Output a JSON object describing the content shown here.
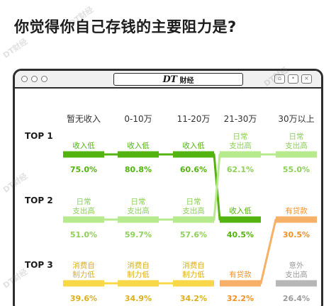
{
  "title": "你觉得你自己存钱的主要阻力是?",
  "window": {
    "logo": "DT",
    "brand": "财经"
  },
  "watermark": "DT财经",
  "colors": {
    "green": "#53b411",
    "light_green": "#b7ea8d",
    "light_green_text": "#8ed05a",
    "yellow": "#f8d848",
    "yellow_text": "#dcb01d",
    "orange": "#f6b068",
    "orange_text": "#f09226",
    "gray": "#b7b7b7",
    "gray_text": "#9a9a9a"
  },
  "chart_data": {
    "type": "table",
    "columns": [
      "暂无收入",
      "0-10万",
      "11-20万",
      "21-30万",
      "30万以上"
    ],
    "rows": [
      "TOP 1",
      "TOP 2",
      "TOP 3"
    ],
    "cells": [
      [
        {
          "label": "收入低",
          "value": "75.0%",
          "category": "income"
        },
        {
          "label": "日常支出高",
          "value": "51.0%",
          "category": "spend"
        },
        {
          "label": "消费自制力低",
          "value": "39.6%",
          "category": "control"
        }
      ],
      [
        {
          "label": "收入低",
          "value": "80.8%",
          "category": "income"
        },
        {
          "label": "日常支出高",
          "value": "59.7%",
          "category": "spend"
        },
        {
          "label": "消费自制力低",
          "value": "34.9%",
          "category": "control"
        }
      ],
      [
        {
          "label": "收入低",
          "value": "60.6%",
          "category": "income"
        },
        {
          "label": "日常支出高",
          "value": "57.6%",
          "category": "spend"
        },
        {
          "label": "消费自制力低",
          "value": "34.2%",
          "category": "control"
        }
      ],
      [
        {
          "label": "日常支出高",
          "value": "62.1%",
          "category": "spend"
        },
        {
          "label": "收入低",
          "value": "40.5%",
          "category": "income"
        },
        {
          "label": "有贷款",
          "value": "32.2%",
          "category": "loan"
        }
      ],
      [
        {
          "label": "日常支出高",
          "value": "55.0%",
          "category": "spend"
        },
        {
          "label": "有贷款",
          "value": "30.5%",
          "category": "loan"
        },
        {
          "label": "意外支出高",
          "value": "26.4%",
          "category": "accident"
        }
      ]
    ]
  }
}
